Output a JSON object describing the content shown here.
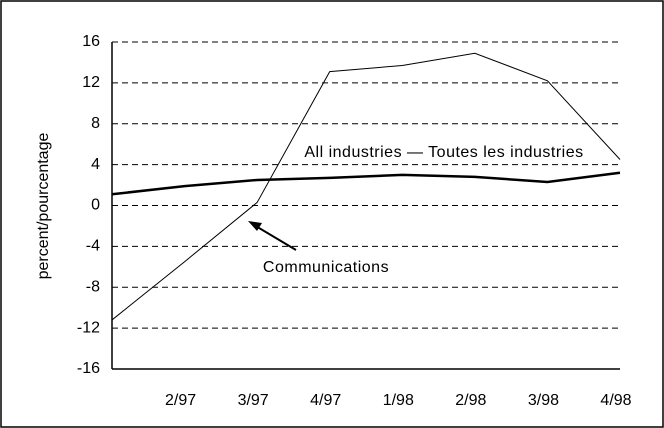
{
  "chart_data": {
    "type": "line",
    "y_label": "percent/pourcentage",
    "categories": [
      null,
      "2/97",
      "3/97",
      "4/97",
      "1/98",
      "2/98",
      "3/98",
      "4/98"
    ],
    "series": [
      {
        "name": "All industries — Toutes les industries",
        "color": "#000000",
        "line_width": 2.5,
        "values": [
          1.1,
          1.9,
          2.5,
          2.7,
          3.0,
          2.8,
          2.3,
          3.2
        ]
      },
      {
        "name": "Communications",
        "color": "#000000",
        "line_width": 1,
        "values": [
          -11.2,
          -5.5,
          0.3,
          13.1,
          13.7,
          14.9,
          12.2,
          4.5
        ]
      }
    ],
    "ylim": [
      -16,
      16
    ],
    "yticks": [
      -16,
      -12,
      -8,
      -4,
      0,
      4,
      8,
      12,
      16
    ],
    "grid": true
  }
}
